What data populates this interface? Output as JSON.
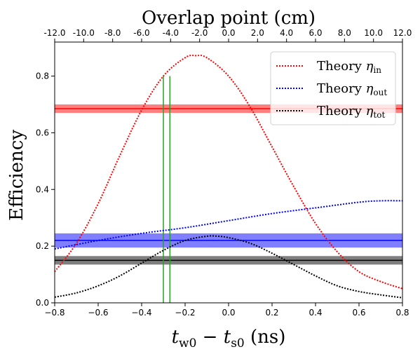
{
  "chart_data": {
    "type": "line",
    "title": "",
    "xlabel": "t_w0 − t_s0 (ns)",
    "xlabel_parts": {
      "t1": "t",
      "s1": "w0",
      "mid": " − ",
      "t2": "t",
      "s2": "s0",
      "unit": " (ns)"
    },
    "ylabel": "Efficiency",
    "top_xlabel": "Overlap point (cm)",
    "xlim": [
      -0.8,
      0.8
    ],
    "ylim": [
      0,
      0.92
    ],
    "x_ticks": [
      -0.8,
      -0.6,
      -0.4,
      -0.2,
      0.0,
      0.2,
      0.4,
      0.6,
      0.8
    ],
    "x_tick_labels": [
      "−0.8",
      "−0.6",
      "−0.4",
      "−0.2",
      "0.0",
      "0.2",
      "0.4",
      "0.6",
      "0.8"
    ],
    "y_ticks": [
      0.0,
      0.2,
      0.4,
      0.6,
      0.8
    ],
    "y_tick_labels": [
      "0.0",
      "0.2",
      "0.4",
      "0.6",
      "0.8"
    ],
    "top_x_ticks": [
      -12,
      -10,
      -8,
      -6,
      -4,
      -2,
      0,
      2,
      4,
      6,
      8,
      10,
      12
    ],
    "top_x_tick_labels": [
      "-12.0",
      "-10.0",
      "-8.0",
      "-6.0",
      "-4.0",
      "-2.0",
      "0.0",
      "2.0",
      "4.0",
      "6.0",
      "8.0",
      "10.0",
      "12.0"
    ],
    "grid": false,
    "legend_position": "top-right",
    "series": [
      {
        "name": "Theory η_in",
        "label_base": "Theory ",
        "label_symbol": "η",
        "label_sub": "in",
        "color": "#ff0000",
        "style": "dotted",
        "x": [
          -0.8,
          -0.7,
          -0.6,
          -0.5,
          -0.4,
          -0.3,
          -0.2,
          -0.15,
          -0.1,
          0.0,
          0.1,
          0.2,
          0.3,
          0.4,
          0.5,
          0.6,
          0.7,
          0.8
        ],
        "y": [
          0.11,
          0.21,
          0.35,
          0.52,
          0.68,
          0.8,
          0.865,
          0.872,
          0.865,
          0.8,
          0.69,
          0.55,
          0.41,
          0.28,
          0.18,
          0.11,
          0.075,
          0.05
        ]
      },
      {
        "name": "Theory η_out",
        "label_base": "Theory ",
        "label_symbol": "η",
        "label_sub": "out",
        "color": "#0000ff",
        "style": "dotted",
        "x": [
          -0.8,
          -0.6,
          -0.4,
          -0.2,
          0.0,
          0.2,
          0.4,
          0.6,
          0.7,
          0.8
        ],
        "y": [
          0.19,
          0.22,
          0.245,
          0.265,
          0.29,
          0.315,
          0.335,
          0.355,
          0.36,
          0.36
        ]
      },
      {
        "name": "Theory η_tot",
        "label_base": "Theory ",
        "label_symbol": "η",
        "label_sub": "tot",
        "color": "#000000",
        "style": "dotted",
        "x": [
          -0.8,
          -0.7,
          -0.6,
          -0.5,
          -0.4,
          -0.3,
          -0.2,
          -0.1,
          -0.05,
          0.0,
          0.1,
          0.2,
          0.3,
          0.4,
          0.5,
          0.6,
          0.7,
          0.8
        ],
        "y": [
          0.02,
          0.035,
          0.06,
          0.095,
          0.14,
          0.185,
          0.22,
          0.235,
          0.235,
          0.23,
          0.21,
          0.175,
          0.135,
          0.095,
          0.06,
          0.04,
          0.028,
          0.018
        ]
      }
    ],
    "bands": [
      {
        "name": "measured-in-band",
        "color": "#ff0000",
        "y": 0.685,
        "y_low": 0.67,
        "y_high": 0.7
      },
      {
        "name": "measured-out-band",
        "color": "#0000ff",
        "y": 0.22,
        "y_low": 0.195,
        "y_high": 0.245
      },
      {
        "name": "measured-tot-band",
        "color": "#000000",
        "y": 0.15,
        "y_low": 0.135,
        "y_high": 0.165
      }
    ],
    "vlines": [
      {
        "name": "marker-line-left",
        "color": "#2ca02c",
        "x": -0.3,
        "y_top": 0.8
      },
      {
        "name": "marker-line-right",
        "color": "#2ca02c",
        "x": -0.27,
        "y_top": 0.8
      }
    ]
  }
}
